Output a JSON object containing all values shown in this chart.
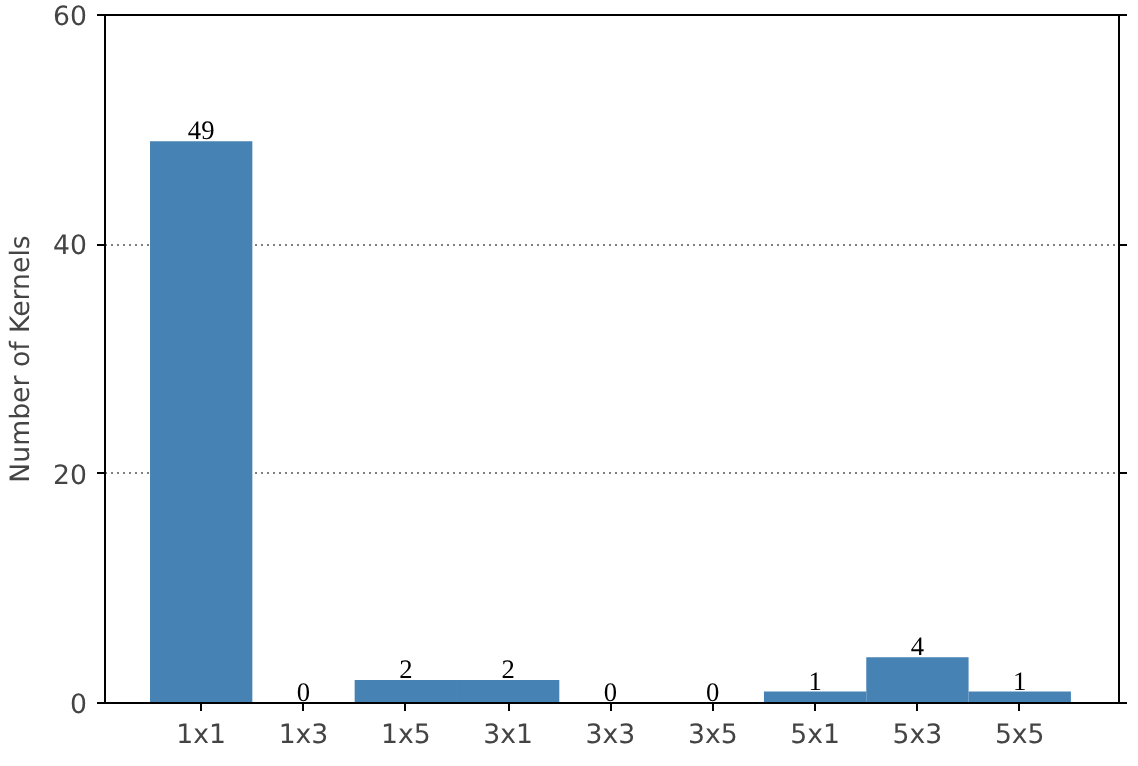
{
  "chart_data": {
    "type": "bar",
    "ylabel": "Number of Kernels",
    "categories": [
      "1x1",
      "1x3",
      "1x5",
      "3x1",
      "3x3",
      "3x5",
      "5x1",
      "5x3",
      "5x5"
    ],
    "values": [
      49,
      0,
      2,
      2,
      0,
      0,
      1,
      4,
      1
    ],
    "color": "#4682b4",
    "ylim": [
      0,
      60
    ],
    "yticks": [
      0,
      20,
      40,
      60
    ],
    "grid": "y",
    "data_labels": true
  }
}
